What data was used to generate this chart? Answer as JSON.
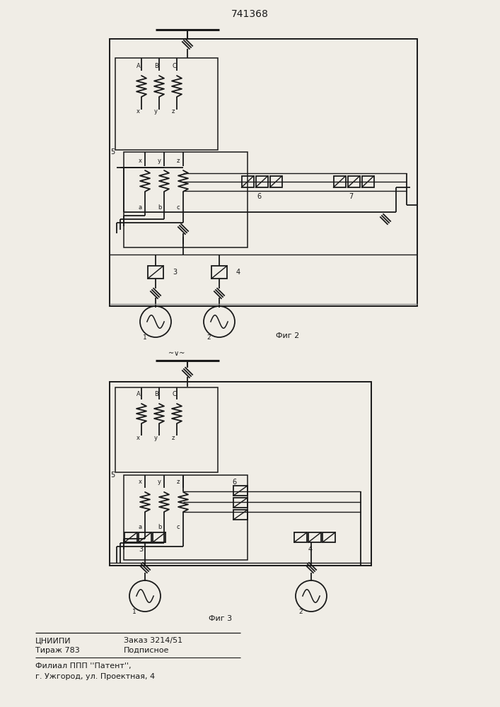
{
  "title": "741368",
  "bg_color": "#f0ede6",
  "line_color": "#1a1a1a",
  "fig2_label": "Фиг 2",
  "fig3_label": "Фиг 3",
  "footer_col1": [
    "ЦНИИПИ",
    "Тираж 783"
  ],
  "footer_col2": [
    "Заказ 3214/51",
    "Подписное"
  ],
  "footer_line3": "Филиал ППП ''Патент'',",
  "footer_line4": "г. Ужгород, ул. Проектная, 4"
}
